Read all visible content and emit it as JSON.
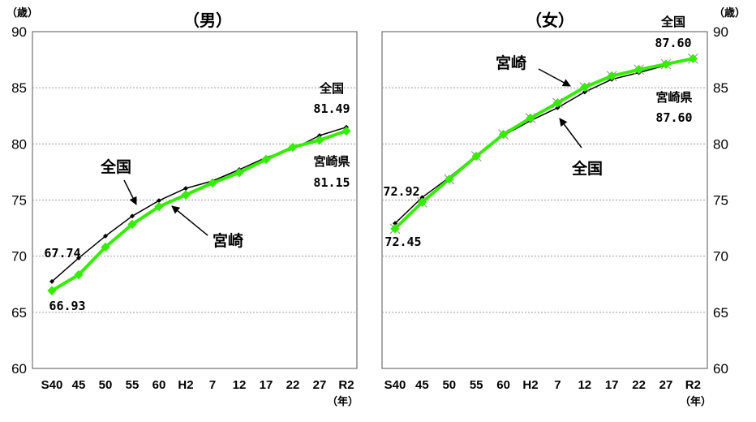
{
  "chart_data": [
    {
      "type": "line",
      "title": "（男）",
      "y_unit": "（歳）",
      "x_unit": "（年）",
      "categories": [
        "S40",
        "45",
        "50",
        "55",
        "60",
        "H2",
        "7",
        "12",
        "17",
        "22",
        "27",
        "R2"
      ],
      "ylim": [
        60,
        90
      ],
      "yticks": [
        60,
        65,
        70,
        75,
        80,
        85,
        90
      ],
      "grid": true,
      "series": [
        {
          "name": "全国",
          "color": "#000000",
          "values": [
            67.74,
            69.84,
            71.79,
            73.57,
            74.95,
            76.04,
            76.7,
            77.71,
            78.79,
            79.55,
            80.75,
            81.49
          ]
        },
        {
          "name": "宮崎",
          "color": "#33ee00",
          "values": [
            66.93,
            68.34,
            70.81,
            72.84,
            74.41,
            75.46,
            76.52,
            77.44,
            78.62,
            79.7,
            80.34,
            81.15
          ]
        }
      ],
      "annotations": {
        "national_label": "全国",
        "miyazaki_label": "宮崎",
        "national_end_name": "全国",
        "national_end_value": "81.49",
        "pref_end_name": "宮崎県",
        "pref_end_value": "81.15",
        "national_start_value": "67.74",
        "pref_start_value": "66.93"
      }
    },
    {
      "type": "line",
      "title": "（女）",
      "y_unit": "（歳）",
      "x_unit": "（年）",
      "categories": [
        "S40",
        "45",
        "50",
        "55",
        "60",
        "H2",
        "7",
        "12",
        "17",
        "22",
        "27",
        "R2"
      ],
      "ylim": [
        60,
        90
      ],
      "yticks": [
        60,
        65,
        70,
        75,
        80,
        85,
        90
      ],
      "grid": true,
      "series": [
        {
          "name": "全国",
          "color": "#000000",
          "values": [
            72.92,
            75.23,
            77.01,
            79.0,
            80.75,
            82.07,
            83.22,
            84.62,
            85.75,
            86.35,
            87.01,
            87.6
          ]
        },
        {
          "name": "宮崎",
          "color": "#33ee00",
          "values": [
            72.45,
            74.8,
            76.85,
            78.9,
            80.85,
            82.3,
            83.65,
            85.05,
            86.05,
            86.62,
            87.1,
            87.6
          ]
        }
      ],
      "annotations": {
        "national_label": "全国",
        "miyazaki_label": "宮崎",
        "national_end_name": "全国",
        "national_end_value": "87.60",
        "pref_end_name": "宮崎県",
        "pref_end_value": "87.60",
        "national_start_value": "72.92",
        "pref_start_value": "72.45"
      }
    }
  ]
}
